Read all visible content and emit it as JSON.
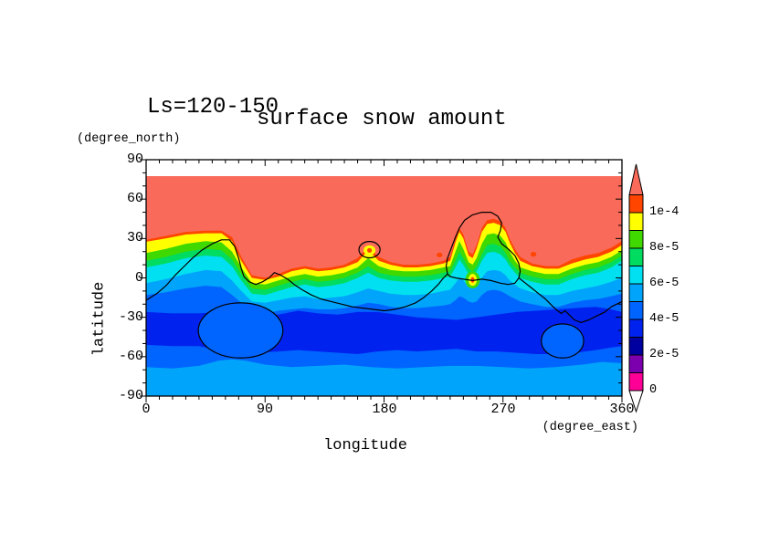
{
  "figure": {
    "title_left": "Ls=120-150",
    "title_main": "surface snow amount",
    "x_axis": {
      "label": "longitude",
      "unit": "(degree_east)",
      "ticks": [
        0,
        90,
        180,
        270,
        360
      ],
      "minor_tick_step": 10,
      "range": [
        0,
        360
      ]
    },
    "y_axis": {
      "label": "latitude",
      "unit": "(degree_north)",
      "ticks": [
        90,
        60,
        30,
        0,
        -30,
        -60,
        -90
      ],
      "minor_tick_step": 10,
      "range": [
        -90,
        90
      ]
    },
    "colorbar": {
      "tick_labels": [
        {
          "text": "1e-4",
          "level": 0.0001
        },
        {
          "text": "8e-5",
          "level": 8e-05
        },
        {
          "text": "6e-5",
          "level": 6e-05
        },
        {
          "text": "4e-5",
          "level": 4e-05
        },
        {
          "text": "2e-5",
          "level": 2e-05
        },
        {
          "text": "0",
          "level": 0
        }
      ],
      "over_arrow_color": "#FA6A5A",
      "under_arrow_color": "#FFFFFF"
    }
  },
  "chart_data": {
    "type": "heatmap",
    "title": "surface snow amount",
    "subtitle": "Ls=120-150",
    "xlabel": "longitude (degree_east)",
    "ylabel": "latitude (degree_north)",
    "xlim": [
      0,
      360
    ],
    "ylim": [
      -90,
      90
    ],
    "grid": false,
    "legend_position": "right-colorbar",
    "contour_levels": [
      0,
      1e-05,
      2e-05,
      3e-05,
      4e-05,
      5e-05,
      6e-05,
      7e-05,
      8e-05,
      9e-05,
      0.0001,
      0.00011
    ],
    "palette": [
      {
        "range": [
          0,
          1e-05
        ],
        "color": "#FF0096"
      },
      {
        "range": [
          1e-05,
          2e-05
        ],
        "color": "#7D00AF"
      },
      {
        "range": [
          2e-05,
          3e-05
        ],
        "color": "#0000A0"
      },
      {
        "range": [
          3e-05,
          4e-05
        ],
        "color": "#0022EE"
      },
      {
        "range": [
          4e-05,
          5e-05
        ],
        "color": "#0064FF"
      },
      {
        "range": [
          5e-05,
          6e-05
        ],
        "color": "#00A4FA"
      },
      {
        "range": [
          6e-05,
          7e-05
        ],
        "color": "#00E0F0"
      },
      {
        "range": [
          7e-05,
          8e-05
        ],
        "color": "#00DC5F"
      },
      {
        "range": [
          8e-05,
          9e-05
        ],
        "color": "#3FD900"
      },
      {
        "range": [
          9e-05,
          0.0001
        ],
        "color": "#FFFF00"
      },
      {
        "range": [
          0.0001,
          0.00011
        ],
        "color": "#FF4500"
      },
      {
        "range": [
          0.00011,
          null
        ],
        "color": "#FA6A5A"
      }
    ],
    "field_summary": "Snow amount exceeds 1.1e-4 everywhere north of a wavy snowline (lat ~0 to ~45N depending on longitude); values decrease southward through rainbow bands to a minimum of 3e-5..4e-5 in the southern mid-latitude dark blue band (~-25 to -55), rising again to 5e-5..6e-5 near the south pole. White strip poleward of ~77.5N.",
    "no_data_band": {
      "lat_range": [
        77.5,
        90
      ],
      "color": "#FFFFFF"
    },
    "band_boundaries": {
      "description": "Latitude (deg north) of the UPPER edge of each shaded band sampled at 'lons' (deg east); each band fills southward until covered by the next.",
      "lons": [
        0,
        15,
        30,
        45,
        57,
        65,
        72,
        80,
        90,
        100,
        110,
        120,
        130,
        140,
        150,
        160,
        168,
        176,
        185,
        195,
        205,
        215,
        225,
        230,
        234,
        237,
        240,
        244,
        247,
        250,
        254,
        258,
        263,
        268,
        272,
        275,
        279,
        283,
        292,
        302,
        312,
        322,
        332,
        342,
        352,
        360
      ],
      "salmon_top_lat": 77.5,
      "north_bands": [
        {
          "name": "salmon_gt_1.1e-4",
          "color": "#FA6A5A",
          "flat_top": 77.5
        },
        {
          "name": "orange_1e-4_1.1e-4",
          "color": "#FF4500",
          "top_lats": [
            29,
            32,
            35,
            36,
            36,
            31,
            16,
            2,
            0,
            3,
            7,
            9,
            7,
            8,
            10,
            15,
            24,
            16,
            12,
            10,
            10,
            11,
            13,
            16,
            30,
            38,
            33,
            20,
            18,
            25,
            38,
            44,
            45,
            43,
            38,
            30,
            22,
            16,
            11,
            9,
            9,
            14,
            17,
            19,
            23,
            28
          ]
        },
        {
          "name": "yellow_9e-5_1e-4",
          "color": "#FFFF00",
          "top_lats": [
            27.5,
            30,
            33,
            34,
            34,
            28,
            13,
            0,
            -1.5,
            1,
            5,
            7,
            5,
            6,
            8,
            12,
            21,
            13,
            10,
            8,
            8,
            9,
            11,
            13,
            27,
            35,
            30,
            17,
            15,
            22,
            35,
            41,
            42,
            40,
            35,
            27,
            19,
            13,
            9,
            7,
            7,
            11,
            14,
            16,
            20,
            25
          ]
        },
        {
          "name": "green_8e-5_9e-5",
          "color": "#3FD900",
          "top_lats": [
            19,
            22,
            26,
            28,
            27,
            20,
            8,
            -4,
            -5,
            -2,
            1,
            3,
            1,
            2,
            4,
            8,
            15,
            9,
            6,
            5,
            5,
            6,
            8,
            9,
            20,
            28,
            22,
            12,
            10,
            15,
            26,
            33,
            34,
            32,
            27,
            20,
            13,
            8,
            5,
            3,
            3,
            7,
            10,
            12,
            16,
            21
          ]
        },
        {
          "name": "springgreen_7e-5_8e-5",
          "color": "#00DC5F",
          "top_lats": [
            13,
            16,
            20,
            22,
            21,
            14,
            3,
            -8,
            -9,
            -6,
            -3,
            -1,
            -3,
            -2,
            0,
            4,
            9,
            4,
            2,
            1,
            1,
            2,
            4,
            5,
            13,
            20,
            15,
            7,
            5,
            9,
            18,
            25,
            26,
            24,
            19,
            13,
            8,
            4,
            1,
            -1,
            -1,
            3,
            6,
            8,
            12,
            17
          ]
        },
        {
          "name": "cyan_6e-5_7e-5",
          "color": "#00E0F0",
          "top_lats": [
            8,
            11,
            15,
            17,
            16,
            9,
            -2,
            -12,
            -13,
            -10,
            -7,
            -5,
            -7,
            -6,
            -4,
            0,
            4,
            0,
            -2,
            -3,
            -3,
            -2,
            0,
            1,
            8,
            14,
            10,
            3,
            1,
            5,
            13,
            19,
            20,
            18,
            14,
            9,
            4,
            0,
            -3,
            -5,
            -5,
            -1,
            2,
            4,
            8,
            13
          ]
        },
        {
          "name": "skyblue_5e-5_6e-5",
          "color": "#00A4FA",
          "top_lats": [
            -4,
            -1,
            3,
            6,
            5,
            -2,
            -10,
            -18,
            -19,
            -17,
            -15,
            -14,
            -16,
            -15,
            -14,
            -11,
            -8,
            -10,
            -12,
            -13,
            -13,
            -12,
            -10,
            -9,
            -4,
            0,
            -2,
            -7,
            -8,
            -6,
            0,
            5,
            6,
            5,
            2,
            -2,
            -5,
            -8,
            -11,
            -13,
            -13,
            -10,
            -8,
            -6,
            -3,
            0
          ]
        },
        {
          "name": "mediumblue_4e-5_5e-5",
          "color": "#0064FF",
          "top_lats": [
            -13,
            -11,
            -8,
            -6,
            -7,
            -13,
            -19,
            -26,
            -27,
            -25,
            -24,
            -23,
            -24,
            -24,
            -23,
            -21,
            -19,
            -20,
            -22,
            -23,
            -23,
            -22,
            -21,
            -20,
            -17,
            -14,
            -15,
            -18,
            -19,
            -18,
            -13,
            -10,
            -9,
            -10,
            -12,
            -14,
            -16,
            -18,
            -20,
            -22,
            -22,
            -19,
            -17,
            -16,
            -14,
            -12
          ]
        }
      ],
      "dark_blue_band": {
        "color": "#0022EE",
        "lons": [
          0,
          20,
          40,
          55,
          70,
          85,
          100,
          115,
          130,
          145,
          160,
          175,
          190,
          205,
          220,
          235,
          250,
          265,
          280,
          295,
          310,
          325,
          340,
          352,
          360
        ],
        "top": [
          -26,
          -27,
          -27,
          -26,
          -26,
          -28,
          -28,
          -25,
          -27,
          -28,
          -26,
          -26,
          -28,
          -30,
          -31,
          -32,
          -30,
          -28,
          -26,
          -25,
          -24,
          -23,
          -22,
          -24,
          -26
        ],
        "bottom": [
          -51,
          -52,
          -52,
          -55,
          -58,
          -57,
          -56,
          -55,
          -56,
          -57,
          -58,
          -56,
          -55,
          -56,
          -55,
          -54,
          -56,
          -56,
          -57,
          -58,
          -58,
          -57,
          -55,
          -53,
          -52
        ]
      },
      "south_polar_skyblue": {
        "color": "#00A4FA",
        "lons": [
          0,
          20,
          40,
          55,
          65,
          75,
          90,
          110,
          130,
          150,
          170,
          190,
          210,
          230,
          250,
          270,
          290,
          310,
          330,
          345,
          360
        ],
        "top": [
          -68,
          -69,
          -67,
          -63,
          -62,
          -63,
          -66,
          -68,
          -67,
          -66,
          -68,
          -69,
          -68,
          -67,
          -67,
          -68,
          -69,
          -68,
          -66,
          -64,
          -65
        ]
      }
    },
    "topography_contours": {
      "main_west": [
        [
          0,
          -17
        ],
        [
          8,
          -12
        ],
        [
          15,
          -6
        ],
        [
          22,
          2
        ],
        [
          28,
          8
        ],
        [
          35,
          15
        ],
        [
          42,
          21
        ],
        [
          50,
          26
        ],
        [
          57,
          29
        ],
        [
          63,
          29
        ],
        [
          67,
          24
        ],
        [
          70,
          15
        ],
        [
          72,
          7
        ],
        [
          74,
          1
        ],
        [
          78,
          -3
        ],
        [
          83,
          -5
        ],
        [
          88,
          -3
        ],
        [
          93,
          0
        ],
        [
          97,
          4
        ],
        [
          102,
          2
        ],
        [
          107,
          -1
        ],
        [
          112,
          -5
        ],
        [
          118,
          -9
        ],
        [
          125,
          -13
        ],
        [
          132,
          -16
        ],
        [
          140,
          -18
        ],
        [
          148,
          -20
        ],
        [
          156,
          -22
        ],
        [
          164,
          -23
        ],
        [
          172,
          -24
        ],
        [
          180,
          -25
        ],
        [
          188,
          -24
        ],
        [
          196,
          -22
        ],
        [
          204,
          -19
        ],
        [
          210,
          -15
        ],
        [
          216,
          -10
        ],
        [
          221,
          -5
        ],
        [
          225,
          0
        ],
        [
          228,
          3
        ]
      ],
      "tharsis_loop": [
        [
          228,
          3
        ],
        [
          227,
          9
        ],
        [
          228,
          15
        ],
        [
          231,
          23
        ],
        [
          234,
          31
        ],
        [
          237,
          38
        ],
        [
          241,
          44
        ],
        [
          247,
          48
        ],
        [
          254,
          50
        ],
        [
          261,
          50
        ],
        [
          266,
          47
        ],
        [
          269,
          42
        ],
        [
          268,
          36
        ],
        [
          266,
          31
        ],
        [
          269,
          26
        ],
        [
          274,
          22
        ],
        [
          279,
          17
        ],
        [
          282,
          11
        ],
        [
          283,
          5
        ],
        [
          282,
          0
        ],
        [
          279,
          -4
        ],
        [
          274,
          -5
        ],
        [
          268,
          -4
        ],
        [
          261,
          -2
        ],
        [
          254,
          -1
        ],
        [
          247,
          -2
        ],
        [
          240,
          -1
        ],
        [
          234,
          0
        ],
        [
          230,
          1
        ],
        [
          228,
          3
        ]
      ],
      "main_east": [
        [
          282,
          0
        ],
        [
          287,
          -4
        ],
        [
          292,
          -8
        ],
        [
          297,
          -12
        ],
        [
          302,
          -16
        ],
        [
          306,
          -20
        ],
        [
          310,
          -24
        ],
        [
          314,
          -27
        ],
        [
          317,
          -25
        ],
        [
          320,
          -28
        ],
        [
          324,
          -32
        ],
        [
          329,
          -34
        ],
        [
          335,
          -32
        ],
        [
          341,
          -29
        ],
        [
          347,
          -26
        ],
        [
          352,
          -22
        ],
        [
          356,
          -20
        ],
        [
          360,
          -18
        ]
      ],
      "elysium_circle": {
        "cx": 169,
        "cy": 21.5,
        "rx": 8,
        "ry": 6.2
      },
      "hellas_oval": {
        "cx": 71.5,
        "cy": -40,
        "rx": 32,
        "ry": 21,
        "fill": "#0064FF"
      },
      "argyre_oval": {
        "cx": 315,
        "cy": -48,
        "rx": 16,
        "ry": 13,
        "fill": "#0064FF"
      }
    },
    "local_spots": [
      {
        "name": "elysium-spot",
        "cx": 169,
        "cy": 21,
        "layers": [
          {
            "rx": 4.5,
            "ry": 3.8,
            "color": "#FFFF00"
          },
          {
            "rx": 1.8,
            "ry": 1.8,
            "color": "#FF4500"
          }
        ]
      },
      {
        "name": "tharsis-dot-west",
        "cx": 222,
        "cy": 17.5,
        "layers": [
          {
            "rx": 2.2,
            "ry": 1.8,
            "color": "#FF4500"
          }
        ]
      },
      {
        "name": "tharsis-dot-east",
        "cx": 293,
        "cy": 18,
        "layers": [
          {
            "rx": 2.2,
            "ry": 1.8,
            "color": "#FF4500"
          }
        ]
      },
      {
        "name": "chryse-spot",
        "cx": 247,
        "cy": -1.5,
        "layers": [
          {
            "rx": 5.5,
            "ry": 6.5,
            "color": "#3FD900"
          },
          {
            "rx": 3.2,
            "ry": 4.5,
            "color": "#FFFF00"
          },
          {
            "rx": 1.4,
            "ry": 2.2,
            "color": "#FF4500"
          }
        ]
      }
    ]
  }
}
